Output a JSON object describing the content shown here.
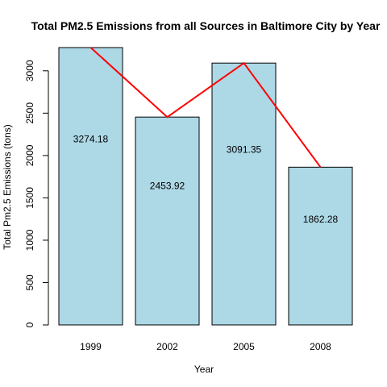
{
  "chart_data": {
    "type": "bar",
    "title": "Total PM2.5 Emissions from all Sources in Baltimore City by Year",
    "xlabel": "Year",
    "ylabel": "Total Pm2.5 Emissions (tons)",
    "categories": [
      "1999",
      "2002",
      "2005",
      "2008"
    ],
    "values": [
      3274.18,
      2453.92,
      3091.35,
      1862.28
    ],
    "data_labels": [
      "3274.18",
      "2453.92",
      "3091.35",
      "1862.28"
    ],
    "yticks": [
      0,
      500,
      1000,
      1500,
      2000,
      2500,
      3000
    ],
    "ylim": [
      0,
      3274.18
    ],
    "grid": false,
    "legend": "none",
    "overlay_line": {
      "type": "line",
      "values": [
        3274.18,
        2453.92,
        3091.35,
        1862.28
      ],
      "color": "#ff0000"
    },
    "colors": {
      "bar_fill": "#add8e6",
      "bar_stroke": "#000000",
      "line": "#ff0000"
    }
  }
}
